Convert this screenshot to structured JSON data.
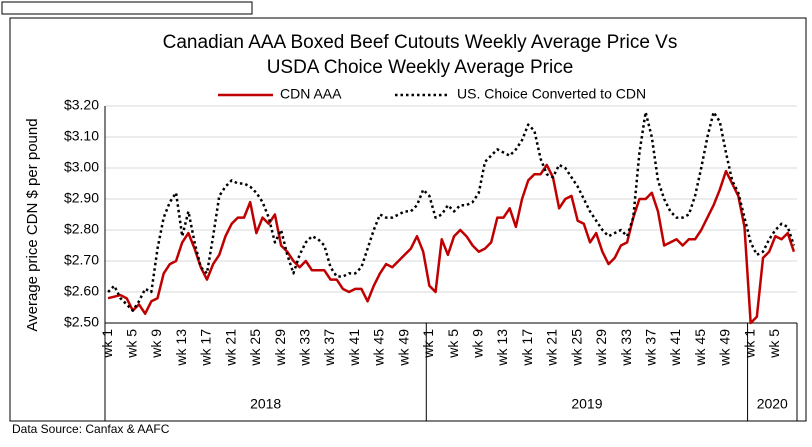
{
  "chart_data": {
    "type": "line",
    "title": "Canadian AAA Boxed Beef Cutouts Weekly Average Price Vs",
    "subtitle": "USDA Choice Weekly Average Price",
    "y_label": "Average price CDN $ per pound",
    "source": "Data Source: Canfax & AAFC",
    "years": [
      "2018",
      "2019",
      "2020"
    ],
    "categories": [
      "wk 1",
      null,
      null,
      null,
      "wk 5",
      null,
      null,
      null,
      "wk 9",
      null,
      null,
      null,
      "wk 13",
      null,
      null,
      null,
      "wk 17",
      null,
      null,
      null,
      "wk 21",
      null,
      null,
      null,
      "wk 25",
      null,
      null,
      null,
      "wk 29",
      null,
      null,
      null,
      "wk 33",
      null,
      null,
      null,
      "wk 37",
      null,
      null,
      null,
      "wk 41",
      null,
      null,
      null,
      "wk 45",
      null,
      null,
      null,
      "wk 49",
      null,
      null,
      null,
      "wk 1",
      null,
      null,
      null,
      "wk 5",
      null,
      null,
      null,
      "wk 9",
      null,
      null,
      null,
      "wk 13",
      null,
      null,
      null,
      "wk 17",
      null,
      null,
      null,
      "wk 21",
      null,
      null,
      null,
      "wk 25",
      null,
      null,
      null,
      "wk 29",
      null,
      null,
      null,
      "wk 33",
      null,
      null,
      null,
      "wk 37",
      null,
      null,
      null,
      "wk 41",
      null,
      null,
      null,
      "wk 45",
      null,
      null,
      null,
      "wk 49",
      null,
      null,
      null,
      "wk 1",
      null,
      null,
      null,
      "wk 5",
      null,
      null,
      null
    ],
    "series": [
      {
        "name": "CDN AAA",
        "color": "#c00000",
        "style": "solid",
        "values": [
          2.58,
          2.585,
          2.59,
          2.58,
          2.54,
          2.56,
          2.53,
          2.57,
          2.58,
          2.66,
          2.69,
          2.7,
          2.76,
          2.79,
          2.74,
          2.68,
          2.64,
          2.69,
          2.72,
          2.78,
          2.82,
          2.84,
          2.84,
          2.89,
          2.79,
          2.84,
          2.82,
          2.85,
          2.75,
          2.73,
          2.7,
          2.68,
          2.7,
          2.67,
          2.67,
          2.67,
          2.64,
          2.64,
          2.61,
          2.6,
          2.61,
          2.61,
          2.57,
          2.62,
          2.66,
          2.69,
          2.68,
          2.7,
          2.72,
          2.74,
          2.78,
          2.73,
          2.62,
          2.6,
          2.77,
          2.72,
          2.78,
          2.8,
          2.78,
          2.75,
          2.73,
          2.74,
          2.76,
          2.84,
          2.84,
          2.87,
          2.81,
          2.9,
          2.96,
          2.98,
          2.98,
          3.01,
          2.97,
          2.87,
          2.9,
          2.91,
          2.83,
          2.82,
          2.76,
          2.79,
          2.73,
          2.69,
          2.71,
          2.75,
          2.76,
          2.84,
          2.9,
          2.9,
          2.92,
          2.86,
          2.75,
          2.76,
          2.77,
          2.75,
          2.77,
          2.77,
          2.8,
          2.84,
          2.88,
          2.93,
          2.99,
          2.95,
          2.91,
          2.81,
          2.5,
          2.52,
          2.71,
          2.73,
          2.78,
          2.77,
          2.79,
          2.73
        ]
      },
      {
        "name": "US. Choice Converted to CDN",
        "color": "#000000",
        "style": "dotted",
        "values": [
          2.6,
          2.62,
          2.58,
          2.56,
          2.54,
          2.57,
          2.61,
          2.6,
          2.74,
          2.84,
          2.89,
          2.92,
          2.78,
          2.86,
          2.76,
          2.68,
          2.66,
          2.78,
          2.91,
          2.94,
          2.96,
          2.95,
          2.95,
          2.94,
          2.92,
          2.89,
          2.84,
          2.76,
          2.8,
          2.72,
          2.66,
          2.72,
          2.76,
          2.78,
          2.77,
          2.75,
          2.68,
          2.65,
          2.65,
          2.66,
          2.66,
          2.68,
          2.74,
          2.8,
          2.85,
          2.84,
          2.84,
          2.85,
          2.86,
          2.86,
          2.88,
          2.93,
          2.91,
          2.84,
          2.85,
          2.88,
          2.86,
          2.88,
          2.88,
          2.89,
          2.92,
          3.02,
          3.04,
          3.06,
          3.05,
          3.04,
          3.06,
          3.09,
          3.14,
          3.12,
          3.03,
          2.98,
          2.97,
          3.01,
          3.0,
          2.97,
          2.94,
          2.9,
          2.86,
          2.83,
          2.8,
          2.78,
          2.79,
          2.8,
          2.78,
          2.84,
          3.05,
          3.18,
          3.1,
          2.96,
          2.9,
          2.86,
          2.84,
          2.84,
          2.85,
          2.91,
          3.0,
          3.1,
          3.18,
          3.15,
          3.05,
          2.96,
          2.92,
          2.84,
          2.76,
          2.72,
          2.73,
          2.77,
          2.8,
          2.82,
          2.81,
          2.75
        ]
      }
    ],
    "ylim": [
      2.5,
      3.2
    ],
    "yticks": [
      {
        "value": 2.5,
        "label": "$2.50"
      },
      {
        "value": 2.6,
        "label": "$2.60"
      },
      {
        "value": 2.7,
        "label": "$2.70"
      },
      {
        "value": 2.8,
        "label": "$2.80"
      },
      {
        "value": 2.9,
        "label": "$2.90"
      },
      {
        "value": 3.0,
        "label": "$3.00"
      },
      {
        "value": 3.1,
        "label": "$3.10"
      },
      {
        "value": 3.2,
        "label": "$3.20"
      }
    ],
    "grid": true,
    "legend": "top"
  }
}
